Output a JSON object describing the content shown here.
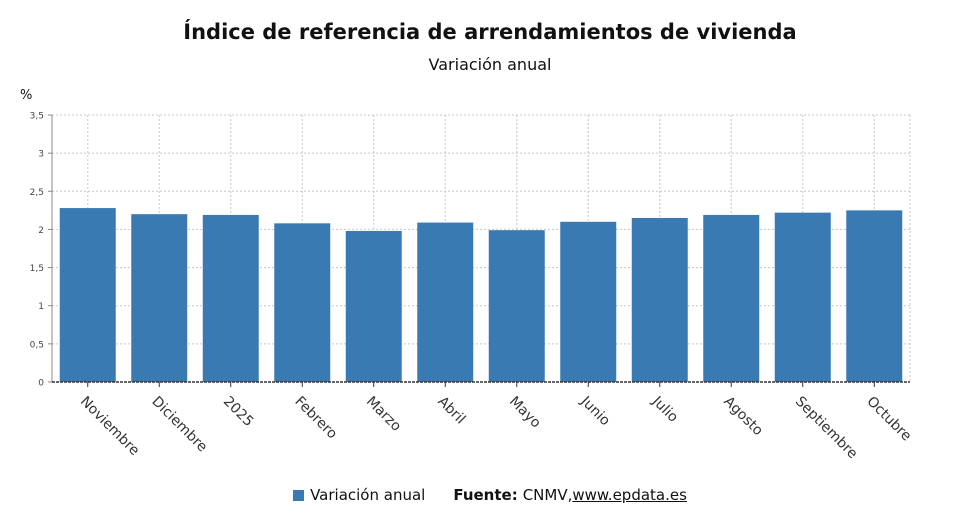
{
  "title": "Índice de referencia de arrendamientos de vivienda",
  "subtitle": "Variación anual",
  "unit": "%",
  "legend": {
    "label": "Variación anual"
  },
  "source": {
    "label": "Fuente:",
    "text": "CNMV, ",
    "link": "www.epdata.es"
  },
  "colors": {
    "bar": "#3a7ab3",
    "grid": "#c8c8c8"
  },
  "chart_data": {
    "type": "bar",
    "categories": [
      "Noviembre",
      "Diciembre",
      "2025",
      "Febrero",
      "Marzo",
      "Abril",
      "Mayo",
      "Junio",
      "Julio",
      "Agosto",
      "Septiembre",
      "Octubre"
    ],
    "series": [
      {
        "name": "Variación anual",
        "values": [
          2.28,
          2.2,
          2.19,
          2.08,
          1.98,
          2.09,
          1.99,
          2.1,
          2.15,
          2.19,
          2.22,
          2.25
        ]
      }
    ],
    "yticks": [
      "0",
      "0,5",
      "1",
      "1,5",
      "2",
      "2,5",
      "3",
      "3,5"
    ],
    "ylim": [
      0,
      3.5
    ],
    "ylabel": "%",
    "grid": true,
    "legend_position": "bottom"
  }
}
